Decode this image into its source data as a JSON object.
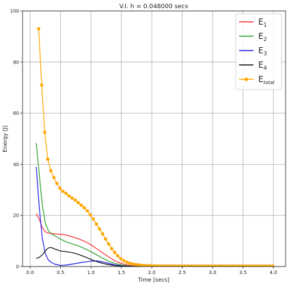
{
  "chart_data": {
    "type": "line",
    "title": "V.I. h = 0.048000 secs",
    "xlabel": "Time [secs]",
    "ylabel": "Energy [J]",
    "xlim": [
      -0.125,
      4.2
    ],
    "ylim": [
      0,
      100
    ],
    "xticks": [
      0.0,
      0.5,
      1.0,
      1.5,
      2.0,
      2.5,
      3.0,
      3.5,
      4.0
    ],
    "xtick_labels": [
      "0.0",
      "0.5",
      "1.0",
      "1.5",
      "2.0",
      "2.5",
      "3.0",
      "3.5",
      "4.0"
    ],
    "yticks": [
      0,
      20,
      40,
      60,
      80,
      100
    ],
    "ytick_labels": [
      "0",
      "20",
      "40",
      "60",
      "80",
      "100"
    ],
    "grid": true,
    "legend_position": "top-right",
    "series": [
      {
        "name": "E1",
        "label_base": "E",
        "label_sub": "1",
        "color": "#ff3030",
        "marker": "none",
        "x": [
          0.1,
          0.15,
          0.2,
          0.25,
          0.3,
          0.4,
          0.5,
          0.6,
          0.7,
          0.8,
          0.9,
          1.0,
          1.1,
          1.2,
          1.3,
          1.4,
          1.5,
          1.6,
          1.7,
          1.8,
          1.9,
          2.0
        ],
        "y": [
          20.8,
          18.5,
          15.2,
          13.6,
          13.1,
          12.8,
          12.6,
          12.3,
          11.6,
          10.8,
          9.8,
          8.5,
          6.9,
          5.2,
          3.6,
          2.2,
          1.2,
          0.6,
          0.3,
          0.15,
          0.08,
          0.05
        ]
      },
      {
        "name": "E2",
        "label_base": "E",
        "label_sub": "2",
        "color": "#2ca02c",
        "marker": "none",
        "x": [
          0.1,
          0.15,
          0.2,
          0.25,
          0.3,
          0.35,
          0.4,
          0.5,
          0.6,
          0.7,
          0.8,
          0.9,
          1.0,
          1.1,
          1.2,
          1.3,
          1.4,
          1.5,
          1.6,
          1.7,
          1.8,
          2.0
        ],
        "y": [
          48.3,
          36.0,
          24.0,
          17.0,
          14.0,
          12.8,
          12.1,
          10.7,
          9.6,
          8.8,
          8.0,
          7.0,
          5.8,
          4.5,
          3.2,
          2.0,
          1.2,
          0.6,
          0.3,
          0.15,
          0.08,
          0.03
        ]
      },
      {
        "name": "E3",
        "label_base": "E",
        "label_sub": "3",
        "color": "#2020ee",
        "marker": "none",
        "x": [
          0.1,
          0.15,
          0.2,
          0.25,
          0.3,
          0.35,
          0.4,
          0.5,
          0.6,
          0.7,
          0.8,
          0.9,
          1.0,
          1.1,
          1.2,
          1.3,
          1.4,
          1.5,
          1.6,
          1.8,
          2.0
        ],
        "y": [
          39.0,
          23.0,
          11.0,
          5.0,
          2.5,
          1.6,
          1.0,
          0.4,
          0.6,
          1.0,
          1.4,
          1.8,
          2.1,
          2.2,
          1.8,
          1.2,
          0.6,
          0.3,
          0.15,
          0.05,
          0.02
        ]
      },
      {
        "name": "E4",
        "label_base": "E",
        "label_sub": "4",
        "color": "#111111",
        "marker": "none",
        "x": [
          0.1,
          0.15,
          0.2,
          0.25,
          0.3,
          0.35,
          0.4,
          0.5,
          0.6,
          0.7,
          0.8,
          0.9,
          1.0,
          1.1,
          1.2,
          1.3,
          1.4,
          1.5,
          1.6,
          1.8,
          2.0
        ],
        "y": [
          3.2,
          3.6,
          4.6,
          6.2,
          7.3,
          7.4,
          6.9,
          6.1,
          5.8,
          5.4,
          4.7,
          3.8,
          2.8,
          1.9,
          1.2,
          0.7,
          0.35,
          0.15,
          0.08,
          0.03,
          0.01
        ]
      },
      {
        "name": "Etotal",
        "label_base": "E",
        "label_sub": "total",
        "color": "#ffa500",
        "marker": "circle",
        "x": [
          0.14,
          0.19,
          0.24,
          0.29,
          0.34,
          0.39,
          0.44,
          0.49,
          0.54,
          0.59,
          0.64,
          0.69,
          0.74,
          0.79,
          0.84,
          0.89,
          0.94,
          0.99,
          1.04,
          1.09,
          1.14,
          1.19,
          1.24,
          1.29,
          1.34,
          1.39,
          1.44,
          1.49,
          1.54,
          1.59,
          1.64,
          1.69,
          1.74,
          1.79,
          1.84,
          1.89,
          1.94,
          1.99,
          2.04,
          2.09,
          2.14,
          2.19,
          2.24,
          2.29,
          2.34,
          2.39,
          2.44,
          2.49,
          2.54,
          2.59,
          2.64,
          2.69,
          2.74,
          2.79,
          2.84,
          2.89,
          2.94,
          2.99,
          3.04,
          3.09,
          3.14,
          3.19,
          3.24,
          3.29,
          3.34,
          3.39,
          3.44,
          3.49,
          3.54,
          3.59,
          3.64,
          3.69,
          3.74,
          3.79,
          3.84,
          3.89,
          3.94,
          3.99
        ],
        "y": [
          93.0,
          71.0,
          52.5,
          42.0,
          37.5,
          34.8,
          32.5,
          30.6,
          29.4,
          28.6,
          27.6,
          26.8,
          26.0,
          25.0,
          24.0,
          23.0,
          21.8,
          20.2,
          18.6,
          16.6,
          14.7,
          12.8,
          10.8,
          8.8,
          7.0,
          5.5,
          4.2,
          3.1,
          2.3,
          1.7,
          1.3,
          1.0,
          0.8,
          0.6,
          0.5,
          0.4,
          0.35,
          0.3,
          0.28,
          0.26,
          0.25,
          0.24,
          0.23,
          0.22,
          0.22,
          0.21,
          0.21,
          0.2,
          0.2,
          0.2,
          0.2,
          0.2,
          0.2,
          0.2,
          0.2,
          0.2,
          0.2,
          0.2,
          0.2,
          0.2,
          0.2,
          0.2,
          0.2,
          0.2,
          0.2,
          0.2,
          0.2,
          0.2,
          0.2,
          0.2,
          0.2,
          0.2,
          0.2,
          0.2,
          0.2,
          0.2,
          0.2,
          0.2
        ]
      }
    ]
  }
}
